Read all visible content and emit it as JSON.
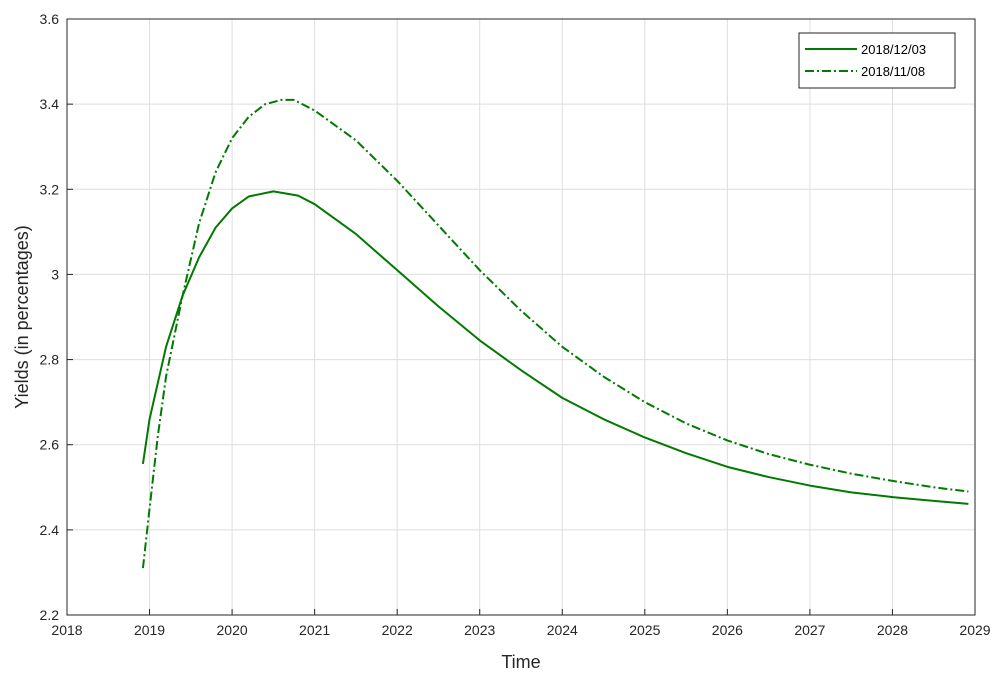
{
  "chart_data": {
    "type": "line",
    "title": "",
    "xlabel": "Time",
    "ylabel": "Yields (in percentages)",
    "xlim": [
      2018,
      2029
    ],
    "ylim": [
      2.2,
      3.6
    ],
    "xticks": [
      "2018",
      "2019",
      "2020",
      "2021",
      "2022",
      "2023",
      "2024",
      "2025",
      "2026",
      "2027",
      "2028",
      "2029"
    ],
    "yticks": [
      "2.2",
      "2.4",
      "2.6",
      "2.8",
      "3",
      "3.2",
      "3.4",
      "3.6"
    ],
    "grid": true,
    "legend_position": "top-right",
    "series": [
      {
        "name": "2018/12/03",
        "line_style": "solid",
        "color": "#007a00",
        "x": [
          2018.92,
          2019.0,
          2019.2,
          2019.4,
          2019.6,
          2019.8,
          2020.0,
          2020.2,
          2020.5,
          2020.8,
          2021.0,
          2021.5,
          2022.0,
          2022.5,
          2023.0,
          2023.5,
          2024.0,
          2024.5,
          2025.0,
          2025.5,
          2026.0,
          2026.5,
          2027.0,
          2027.5,
          2028.0,
          2028.5,
          2028.92
        ],
        "y": [
          2.555,
          2.66,
          2.83,
          2.95,
          3.04,
          3.11,
          3.155,
          3.183,
          3.195,
          3.185,
          3.165,
          3.095,
          3.01,
          2.925,
          2.845,
          2.775,
          2.71,
          2.66,
          2.617,
          2.58,
          2.548,
          2.524,
          2.504,
          2.488,
          2.477,
          2.468,
          2.461
        ]
      },
      {
        "name": "2018/11/08",
        "line_style": "dashdot",
        "color": "#007a00",
        "x": [
          2018.92,
          2019.0,
          2019.1,
          2019.2,
          2019.4,
          2019.6,
          2019.8,
          2020.0,
          2020.2,
          2020.4,
          2020.6,
          2020.75,
          2021.0,
          2021.5,
          2022.0,
          2022.5,
          2023.0,
          2023.5,
          2024.0,
          2024.5,
          2025.0,
          2025.5,
          2026.0,
          2026.5,
          2027.0,
          2027.5,
          2028.0,
          2028.5,
          2028.92
        ],
        "y": [
          2.31,
          2.45,
          2.62,
          2.76,
          2.95,
          3.12,
          3.24,
          3.32,
          3.37,
          3.4,
          3.41,
          3.41,
          3.385,
          3.315,
          3.22,
          3.115,
          3.01,
          2.915,
          2.83,
          2.76,
          2.7,
          2.65,
          2.61,
          2.578,
          2.553,
          2.532,
          2.515,
          2.5,
          2.49
        ]
      }
    ]
  }
}
